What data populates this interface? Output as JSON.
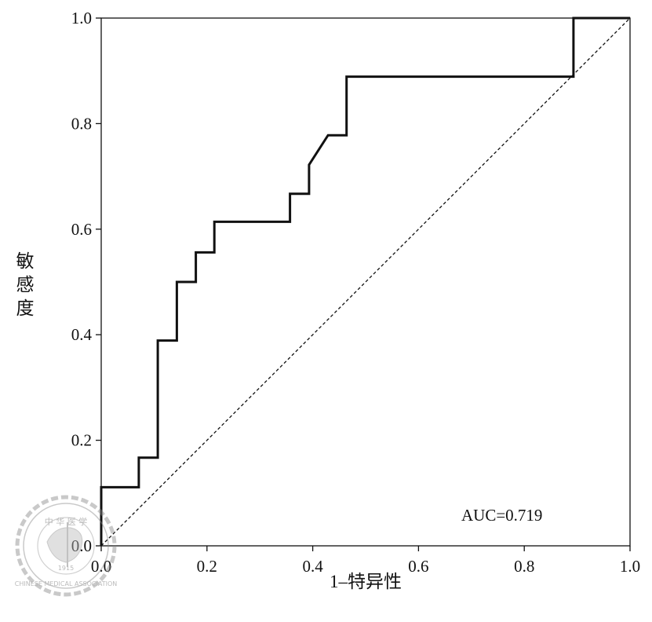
{
  "chart_data": {
    "type": "line",
    "xlabel": "1–特异性",
    "ylabel": "敏感度",
    "xlim": [
      0,
      1
    ],
    "ylim": [
      0,
      1
    ],
    "x_ticks": [
      "0.0",
      "0.2",
      "0.4",
      "0.6",
      "0.8",
      "1.0"
    ],
    "y_ticks": [
      "0.0",
      "0.2",
      "0.4",
      "0.6",
      "0.8",
      "1.0"
    ],
    "annotation": "AUC=0.719",
    "grid": false,
    "legend": "none",
    "series": [
      {
        "points": [
          [
            0.0,
            0.0
          ],
          [
            0.0,
            0.111
          ],
          [
            0.071,
            0.111
          ],
          [
            0.071,
            0.167
          ],
          [
            0.107,
            0.167
          ],
          [
            0.107,
            0.389
          ],
          [
            0.143,
            0.389
          ],
          [
            0.143,
            0.5
          ],
          [
            0.179,
            0.5
          ],
          [
            0.179,
            0.556
          ],
          [
            0.214,
            0.556
          ],
          [
            0.214,
            0.614
          ],
          [
            0.357,
            0.614
          ],
          [
            0.357,
            0.667
          ],
          [
            0.393,
            0.667
          ],
          [
            0.393,
            0.722
          ],
          [
            0.429,
            0.778
          ],
          [
            0.464,
            0.778
          ],
          [
            0.464,
            0.889
          ],
          [
            0.893,
            0.889
          ],
          [
            0.893,
            1.0
          ],
          [
            1.0,
            1.0
          ]
        ]
      },
      {
        "style": "dashed",
        "points": [
          [
            0,
            0
          ],
          [
            1,
            1
          ]
        ]
      }
    ]
  },
  "watermark": {
    "text_top": "中 华 医 学",
    "text_bottom": "CHINESE MEDICAL ASSOCIATION",
    "year": "1915"
  }
}
